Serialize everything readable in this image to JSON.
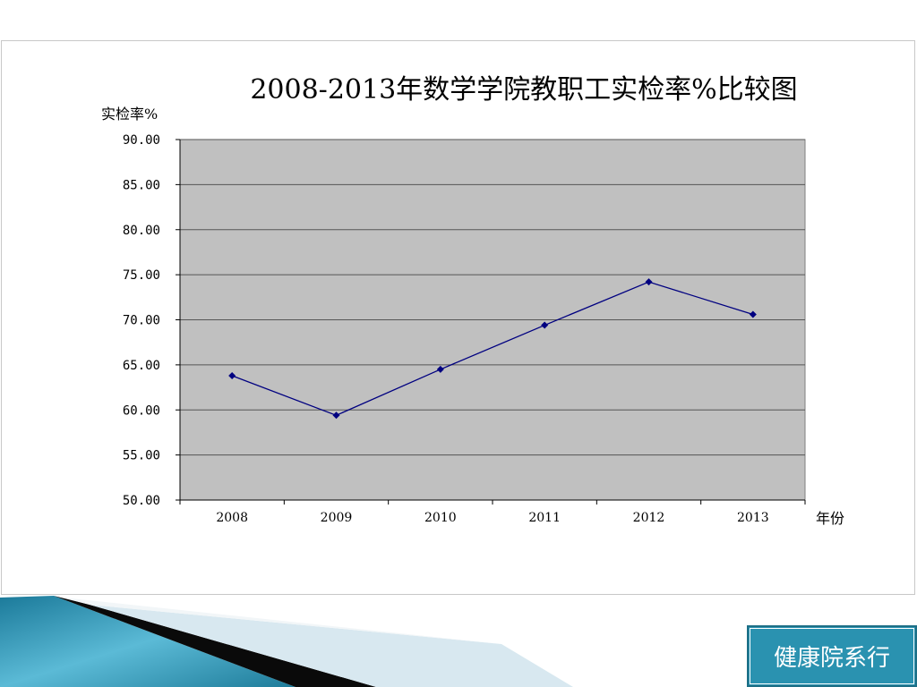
{
  "slide": {
    "footer_button_label": "健康院系行"
  },
  "chart_data": {
    "type": "line",
    "title": "2008-2013年数学学院教职工实检率%比较图",
    "xlabel": "年份",
    "ylabel": "实检率%",
    "categories": [
      "2008",
      "2009",
      "2010",
      "2011",
      "2012",
      "2013"
    ],
    "series": [
      {
        "values": [
          63.8,
          59.4,
          64.5,
          69.4,
          74.2,
          70.6
        ]
      }
    ],
    "ylim": [
      50,
      90
    ],
    "yticks": [
      "50.00",
      "55.00",
      "60.00",
      "65.00",
      "70.00",
      "75.00",
      "80.00",
      "85.00",
      "90.00"
    ],
    "grid": true,
    "legend": "none",
    "colors": {
      "line": "#000080",
      "plot_bg": "#c0c0c0",
      "grid": "#555555"
    }
  }
}
